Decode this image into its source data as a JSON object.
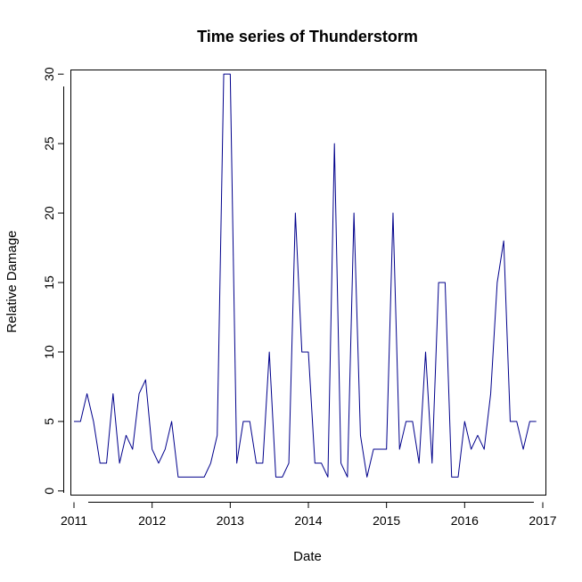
{
  "chart_data": {
    "type": "line",
    "title": "Time series of Thunderstorm",
    "xlabel": "Date",
    "ylabel": "Relative Damage",
    "xlim": [
      2010.96,
      2017.04
    ],
    "ylim": [
      -0.3,
      30.3
    ],
    "x_ticks": [
      "2011",
      "2012",
      "2013",
      "2014",
      "2015",
      "2016",
      "2017"
    ],
    "y_ticks": [
      "0",
      "5",
      "10",
      "15",
      "20",
      "25",
      "30"
    ],
    "grid": false,
    "line_color": "#00008b",
    "series": [
      {
        "x_start": 2011.0,
        "step": 0.0833333,
        "values": [
          5,
          5,
          7,
          5,
          2,
          2,
          7,
          2,
          4,
          3,
          7,
          8,
          3,
          2,
          3,
          5,
          1,
          1,
          1,
          1,
          1,
          2,
          4,
          30,
          30,
          2,
          5,
          5,
          2,
          2,
          10,
          1,
          1,
          2,
          20,
          10,
          10,
          2,
          2,
          1,
          25,
          2,
          1,
          20,
          4,
          1,
          3,
          3,
          3,
          20,
          3,
          5,
          5,
          2,
          10,
          2,
          15,
          15,
          1,
          1,
          5,
          3,
          4,
          3,
          7,
          15,
          18,
          5,
          5,
          3,
          5,
          5
        ]
      }
    ]
  }
}
